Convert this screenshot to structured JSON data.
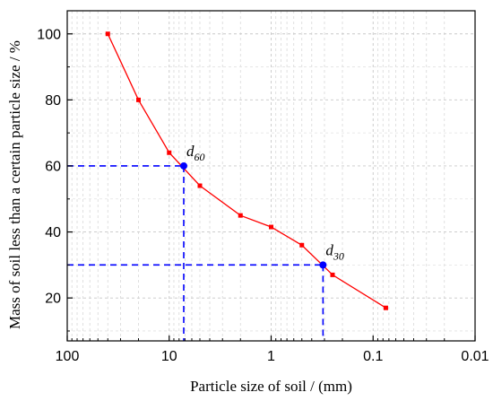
{
  "chart_data": {
    "type": "line",
    "xlabel": "Particle size of soil / (mm)",
    "ylabel": "Mass of soil less than a certain particle size / %",
    "x_scale": "log",
    "x_reversed": true,
    "xlim": [
      100,
      0.01
    ],
    "ylim": [
      7,
      107
    ],
    "x_ticks": [
      {
        "value": 100,
        "label": "100"
      },
      {
        "value": 10,
        "label": "10"
      },
      {
        "value": 1,
        "label": "1"
      },
      {
        "value": 0.1,
        "label": "0.1"
      },
      {
        "value": 0.01,
        "label": "0.01"
      }
    ],
    "y_ticks": [
      {
        "value": 20,
        "label": "20"
      },
      {
        "value": 40,
        "label": "40"
      },
      {
        "value": 60,
        "label": "60"
      },
      {
        "value": 80,
        "label": "80"
      },
      {
        "value": 100,
        "label": "100"
      }
    ],
    "grid": true,
    "series": [
      {
        "color": "#ff0000",
        "marker": "square",
        "points": [
          {
            "x": 40,
            "y": 100
          },
          {
            "x": 20,
            "y": 80
          },
          {
            "x": 10,
            "y": 64
          },
          {
            "x": 5,
            "y": 54
          },
          {
            "x": 2,
            "y": 45
          },
          {
            "x": 1,
            "y": 41.5
          },
          {
            "x": 0.5,
            "y": 36
          },
          {
            "x": 0.25,
            "y": 27
          },
          {
            "x": 0.075,
            "y": 17
          }
        ]
      }
    ],
    "annotations": [
      {
        "base": "d",
        "sub": "60",
        "x": 7.2,
        "y": 60,
        "color": "#0000ff"
      },
      {
        "base": "d",
        "sub": "30",
        "x": 0.31,
        "y": 30,
        "color": "#0000ff"
      }
    ],
    "guide_color": "#0000ff"
  }
}
